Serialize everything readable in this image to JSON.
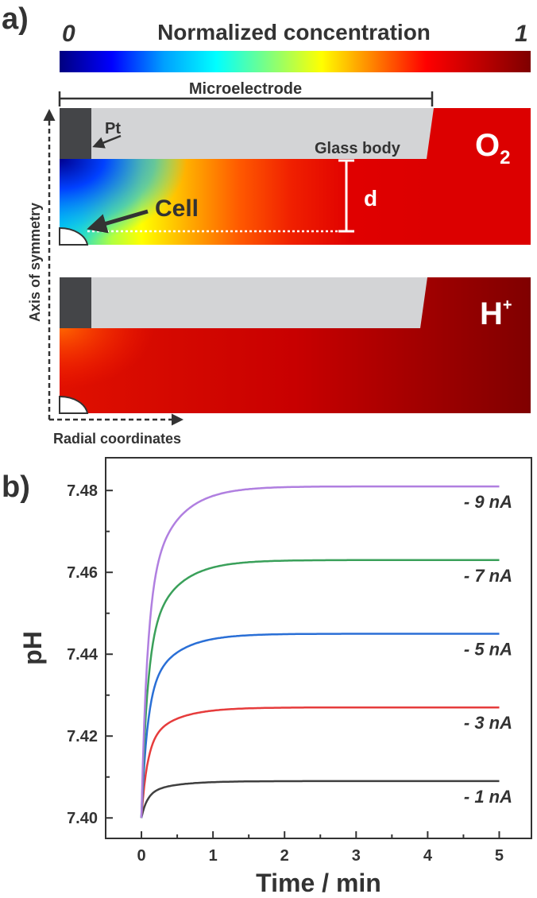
{
  "panel_a": {
    "label": "a)",
    "colorbar": {
      "title": "Normalized concentration",
      "min_label": "0",
      "max_label": "1",
      "stops": [
        "#00007f",
        "#0000ff",
        "#00a0ff",
        "#00ffff",
        "#7fff7f",
        "#ffff00",
        "#ff8000",
        "#ff0000",
        "#c00000",
        "#7f0000"
      ]
    },
    "microelectrode_label": "Microelectrode",
    "pt_label": "Pt",
    "glass_body_label": "Glass body",
    "cell_label": "Cell",
    "d_label": "d",
    "o2_label": "O",
    "o2_subscript": "2",
    "h_label": "H",
    "h_superscript": "+",
    "axis_symmetry_label": "Axis of symmetry",
    "radial_label": "Radial coordinates"
  },
  "panel_b": {
    "label": "b)"
  },
  "chart_data": {
    "type": "line",
    "xlabel": "Time / min",
    "ylabel": "pH",
    "xlim": [
      -0.5,
      5.45
    ],
    "ylim": [
      7.395,
      7.488
    ],
    "xticks": [
      0,
      1,
      2,
      3,
      4,
      5
    ],
    "xtick_labels": [
      "0",
      "1",
      "2",
      "3",
      "4",
      "5"
    ],
    "yticks": [
      7.4,
      7.42,
      7.44,
      7.46,
      7.48
    ],
    "ytick_labels": [
      "7.40",
      "7.42",
      "7.44",
      "7.46",
      "7.48"
    ],
    "grid": false,
    "model": "pH(t) = 7.40 + delta * (1 - 0.65*exp(-t/0.08) - 0.35*exp(-t/0.4))",
    "x_range": [
      0,
      5
    ],
    "series": [
      {
        "name": "- 1 nA",
        "plateau": 7.409,
        "color": "#404040"
      },
      {
        "name": "- 3 nA",
        "plateau": 7.427,
        "color": "#e63c3c"
      },
      {
        "name": "- 5 nA",
        "plateau": 7.445,
        "color": "#2a6fd6"
      },
      {
        "name": "- 7 nA",
        "plateau": 7.463,
        "color": "#3aa05a"
      },
      {
        "name": "- 9 nA",
        "plateau": 7.481,
        "color": "#b07fe0"
      }
    ]
  }
}
